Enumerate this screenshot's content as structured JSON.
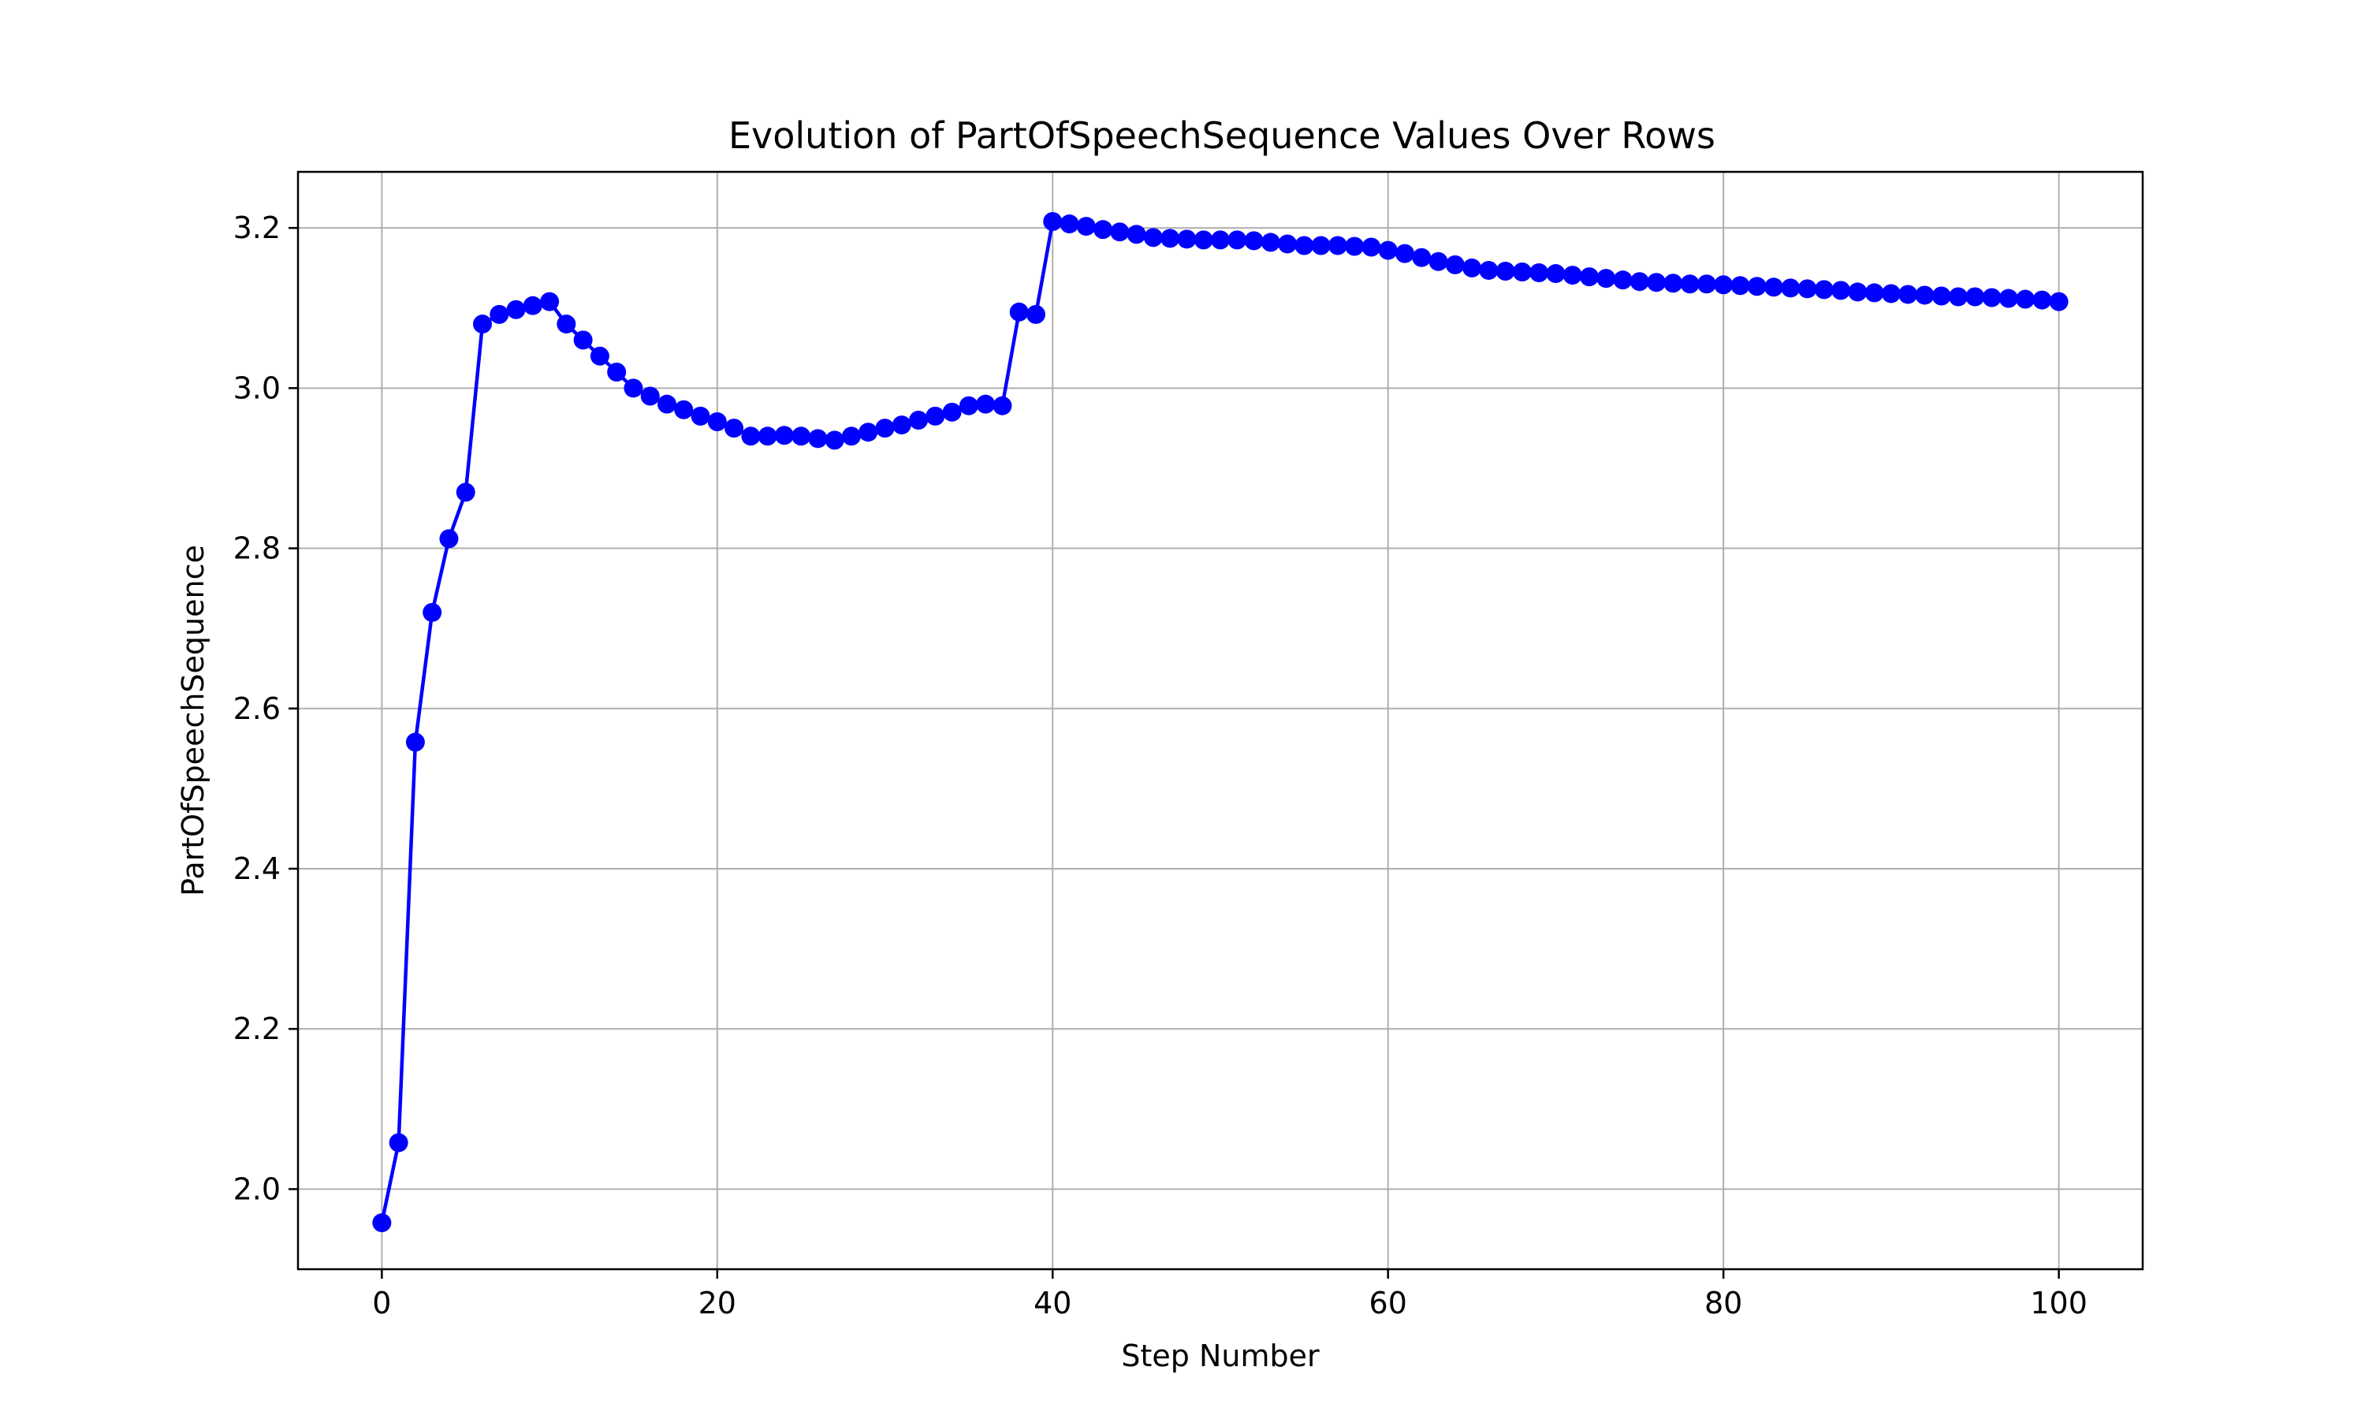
{
  "chart_data": {
    "type": "line",
    "title": "Evolution of PartOfSpeechSequence Values Over Rows",
    "xlabel": "Step Number",
    "ylabel": "PartOfSpeechSequence",
    "xlim": [
      -5,
      105
    ],
    "ylim": [
      1.9,
      3.27
    ],
    "xticks": [
      0,
      20,
      40,
      60,
      80,
      100
    ],
    "yticks": [
      2.0,
      2.2,
      2.4,
      2.6,
      2.8,
      3.0,
      3.2
    ],
    "xtick_labels": [
      "0",
      "20",
      "40",
      "60",
      "80",
      "100"
    ],
    "ytick_labels": [
      "2.0",
      "2.2",
      "2.4",
      "2.6",
      "2.8",
      "3.0",
      "3.2"
    ],
    "grid": true,
    "legend": false,
    "series": [
      {
        "color": "#0000ff",
        "marker": "circle",
        "x": [
          0,
          1,
          2,
          3,
          4,
          5,
          6,
          7,
          8,
          9,
          10,
          11,
          12,
          13,
          14,
          15,
          16,
          17,
          18,
          19,
          20,
          21,
          22,
          23,
          24,
          25,
          26,
          27,
          28,
          29,
          30,
          31,
          32,
          33,
          34,
          35,
          36,
          37,
          38,
          39,
          40,
          41,
          42,
          43,
          44,
          45,
          46,
          47,
          48,
          49,
          50,
          51,
          52,
          53,
          54,
          55,
          56,
          57,
          58,
          59,
          60,
          61,
          62,
          63,
          64,
          65,
          66,
          67,
          68,
          69,
          70,
          71,
          72,
          73,
          74,
          75,
          76,
          77,
          78,
          79,
          80,
          81,
          82,
          83,
          84,
          85,
          86,
          87,
          88,
          89,
          90,
          91,
          92,
          93,
          94,
          95,
          96,
          97,
          98,
          99,
          100
        ],
        "y": [
          1.958,
          2.058,
          2.558,
          2.72,
          2.812,
          2.87,
          3.08,
          3.092,
          3.098,
          3.103,
          3.108,
          3.08,
          3.06,
          3.04,
          3.02,
          3.0,
          2.99,
          2.98,
          2.973,
          2.965,
          2.958,
          2.95,
          2.94,
          2.94,
          2.941,
          2.94,
          2.937,
          2.935,
          2.94,
          2.945,
          2.95,
          2.954,
          2.96,
          2.965,
          2.97,
          2.978,
          2.98,
          2.978,
          3.095,
          3.092,
          3.208,
          3.205,
          3.202,
          3.198,
          3.195,
          3.192,
          3.188,
          3.187,
          3.186,
          3.185,
          3.185,
          3.185,
          3.184,
          3.182,
          3.18,
          3.178,
          3.178,
          3.178,
          3.177,
          3.176,
          3.172,
          3.168,
          3.163,
          3.158,
          3.154,
          3.15,
          3.147,
          3.146,
          3.145,
          3.144,
          3.143,
          3.141,
          3.139,
          3.137,
          3.135,
          3.133,
          3.132,
          3.131,
          3.13,
          3.13,
          3.129,
          3.128,
          3.127,
          3.126,
          3.125,
          3.124,
          3.123,
          3.122,
          3.12,
          3.119,
          3.118,
          3.117,
          3.116,
          3.115,
          3.114,
          3.114,
          3.113,
          3.112,
          3.111,
          3.11,
          3.108
        ]
      }
    ]
  }
}
